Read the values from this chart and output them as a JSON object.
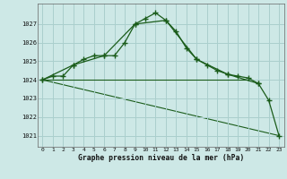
{
  "title": "Graphe pression niveau de la mer (hPa)",
  "background_color": "#cde8e6",
  "grid_color": "#aacfcd",
  "line_color": "#1a5c1a",
  "xlim": [
    -0.5,
    23.5
  ],
  "ylim": [
    1020.4,
    1028.1
  ],
  "yticks": [
    1021,
    1022,
    1023,
    1024,
    1025,
    1026,
    1027
  ],
  "xticks": [
    0,
    1,
    2,
    3,
    4,
    5,
    6,
    7,
    8,
    9,
    10,
    11,
    12,
    13,
    14,
    15,
    16,
    17,
    18,
    19,
    20,
    21,
    22,
    23
  ],
  "series_hourly": {
    "x": [
      0,
      1,
      2,
      3,
      4,
      5,
      6,
      7,
      8,
      9,
      10,
      11,
      12,
      13,
      14,
      15,
      16,
      17,
      18,
      19,
      20,
      21,
      22,
      23
    ],
    "y": [
      1024.0,
      1024.2,
      1024.2,
      1024.8,
      1025.1,
      1025.3,
      1025.3,
      1025.3,
      1026.0,
      1027.0,
      1027.3,
      1027.6,
      1027.2,
      1026.6,
      1025.7,
      1025.1,
      1024.8,
      1024.5,
      1024.3,
      1024.2,
      1024.1,
      1023.8,
      1022.9,
      1021.0
    ]
  },
  "series_3hourly": {
    "x": [
      0,
      3,
      6,
      9,
      12,
      15,
      18,
      21
    ],
    "y": [
      1024.0,
      1024.8,
      1025.3,
      1027.0,
      1027.2,
      1025.1,
      1024.3,
      1023.8
    ]
  },
  "series_flat": {
    "x": [
      0,
      20
    ],
    "y": [
      1024.0,
      1024.0
    ]
  },
  "series_diagonal": {
    "x": [
      0,
      23
    ],
    "y": [
      1024.0,
      1021.0
    ]
  }
}
